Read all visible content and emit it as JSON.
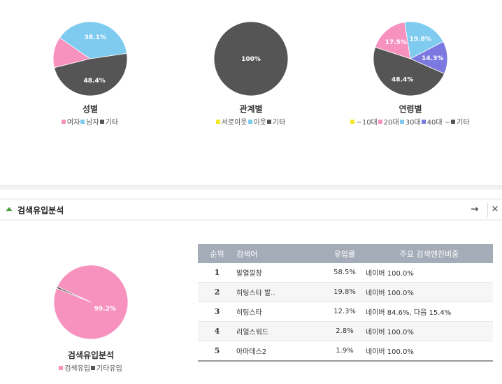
{
  "chart_data": [
    {
      "type": "pie",
      "title": "성별",
      "slices": [
        {
          "name": "여자",
          "value": 13.5,
          "color": "#f792bf"
        },
        {
          "name": "남자",
          "value": 38.1,
          "color": "#7fcbef"
        },
        {
          "name": "기타",
          "value": 48.4,
          "color": "#555555"
        }
      ],
      "labels": [
        "",
        "38.1%",
        "48.4%"
      ],
      "start_angle_deg": 256
    },
    {
      "type": "pie",
      "title": "관계별",
      "slices": [
        {
          "name": "서로이웃",
          "value": 0,
          "color": "#f5e82a"
        },
        {
          "name": "이웃",
          "value": 0,
          "color": "#7fcbef"
        },
        {
          "name": "기타",
          "value": 100,
          "color": "#555555"
        }
      ],
      "labels": [
        "",
        "",
        "100%"
      ],
      "start_angle_deg": 0
    },
    {
      "type": "pie",
      "title": "연령별",
      "slices": [
        {
          "name": "~10대",
          "value": 0,
          "color": "#f5e82a"
        },
        {
          "name": "20대",
          "value": 17.5,
          "color": "#f792bf"
        },
        {
          "name": "30대",
          "value": 19.8,
          "color": "#7fcbef"
        },
        {
          "name": "40대 ~",
          "value": 14.3,
          "color": "#7b79e0"
        },
        {
          "name": "기타",
          "value": 48.4,
          "color": "#555555"
        }
      ],
      "labels": [
        "",
        "17.5%",
        "19.8%",
        "14.3%",
        "48.4%"
      ],
      "start_angle_deg": 288
    },
    {
      "type": "pie",
      "title": "검색유입분석",
      "slices": [
        {
          "name": "검색유입",
          "value": 99.2,
          "color": "#f792bf"
        },
        {
          "name": "기타유입",
          "value": 0.8,
          "color": "#555555"
        }
      ],
      "labels": [
        "99.2%",
        ""
      ],
      "start_angle_deg": 295
    }
  ],
  "panel": {
    "title": "검색유입분석",
    "arrow": "→",
    "close": "✕"
  },
  "table": {
    "headers": [
      "순위",
      "검색어",
      "유입률",
      "주요 검색엔진비중"
    ],
    "rows": [
      {
        "rank": "1",
        "keyword": "발열깔창",
        "rate": "58.5%",
        "engines": "네이버 100.0%"
      },
      {
        "rank": "2",
        "keyword": "히팅스타 발..",
        "rate": "19.8%",
        "engines": "네이버 100.0%"
      },
      {
        "rank": "3",
        "keyword": "히팅스타",
        "rate": "12.3%",
        "engines": "네이버 84.6%, 다음 15.4%"
      },
      {
        "rank": "4",
        "keyword": "리얼스워드",
        "rate": "2.8%",
        "engines": "네이버 100.0%"
      },
      {
        "rank": "5",
        "keyword": "아마데스2",
        "rate": "1.9%",
        "engines": "네이버 100.0%"
      }
    ]
  },
  "icons": {
    "collapse": "triangle-up-icon",
    "arrow": "arrow-right-icon",
    "close": "close-icon"
  }
}
